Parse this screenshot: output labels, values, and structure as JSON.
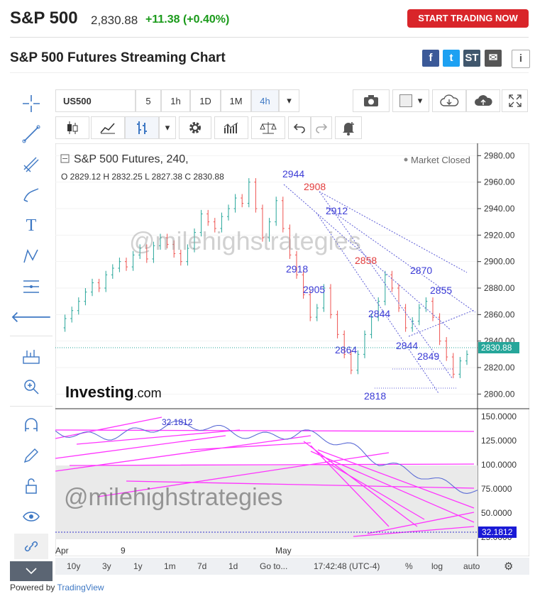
{
  "header": {
    "title": "S&P 500",
    "price": "2,830.88",
    "change": "+11.38 (+0.40%)",
    "trade_button": "START TRADING NOW",
    "subtitle": "S&P 500 Futures Streaming Chart"
  },
  "share": [
    {
      "icon": "facebook-icon",
      "glyph": "f",
      "color": "#3b5998"
    },
    {
      "icon": "twitter-icon",
      "glyph": "t",
      "color": "#1da1f2"
    },
    {
      "icon": "stocktwits-icon",
      "glyph": "ST",
      "color": "#40576d"
    },
    {
      "icon": "email-icon",
      "glyph": "✉",
      "color": "#555555"
    },
    {
      "icon": "info-icon",
      "glyph": "i",
      "color": "#666666"
    }
  ],
  "toolbar": {
    "symbol": "US500",
    "intervals": [
      "5",
      "1h",
      "1D",
      "1M",
      "4h"
    ],
    "active_interval": "4h"
  },
  "chart_legend": {
    "name": "S&P 500 Futures, 240,",
    "ohlc": "O 2829.12  H 2832.25  L 2827.38  C 2830.88",
    "status": "Market Closed",
    "last_price": "2830.88",
    "watermark": "@milehighstrategies",
    "logo": "Investing",
    "logo_suffix": ".com"
  },
  "rsi_panel": {
    "value_label": "32.1812",
    "last_value": "32.1812",
    "watermark": "@milehighstrategies",
    "y_ticks": [
      "150.0000",
      "125.0000",
      "100.0000",
      "75.0000",
      "50.0000",
      "25.0000"
    ]
  },
  "x_ticks": [
    {
      "label": "Apr"
    },
    {
      "label": "9"
    },
    {
      "label": "May"
    }
  ],
  "bottombar": {
    "ranges": [
      "10y",
      "3y",
      "1y",
      "1m",
      "7d",
      "1d",
      "Go to..."
    ],
    "time": "17:42:48 (UTC-4)",
    "options": [
      "%",
      "log",
      "auto"
    ]
  },
  "footer": {
    "text": "Powered by",
    "link": "TradingView"
  },
  "chart_data": {
    "type": "candlestick",
    "title": "S&P 500 Futures, 240,",
    "ylim": [
      2790,
      2985
    ],
    "y_ticks": [
      2800,
      2820,
      2840,
      2860,
      2880,
      2900,
      2920,
      2940,
      2960,
      2980
    ],
    "annotations": [
      {
        "label": "2944",
        "color": "#3b3bd6"
      },
      {
        "label": "2908",
        "color": "#e23b3b"
      },
      {
        "label": "2912",
        "color": "#3b3bd6"
      },
      {
        "label": "2918",
        "color": "#3b3bd6"
      },
      {
        "label": "2905",
        "color": "#3b3bd6"
      },
      {
        "label": "2858",
        "color": "#e23b3b"
      },
      {
        "label": "2870",
        "color": "#3b3bd6"
      },
      {
        "label": "2855",
        "color": "#3b3bd6"
      },
      {
        "label": "2844",
        "color": "#3b3bd6"
      },
      {
        "label": "2844",
        "color": "#3b3bd6"
      },
      {
        "label": "2864",
        "color": "#3b3bd6"
      },
      {
        "label": "2849",
        "color": "#3b3bd6"
      },
      {
        "label": "2818",
        "color": "#3b3bd6"
      }
    ],
    "close_path": [
      2850,
      2857,
      2863,
      2870,
      2877,
      2884,
      2880,
      2890,
      2895,
      2900,
      2896,
      2905,
      2910,
      2902,
      2912,
      2918,
      2913,
      2906,
      2900,
      2910,
      2922,
      2936,
      2930,
      2925,
      2934,
      2940,
      2948,
      2944,
      2960,
      2940,
      2918,
      2930,
      2946,
      2925,
      2905,
      2890,
      2875,
      2858,
      2865,
      2880,
      2860,
      2845,
      2830,
      2818,
      2830,
      2845,
      2858,
      2870,
      2890,
      2880,
      2865,
      2850,
      2855,
      2865,
      2870,
      2858,
      2840,
      2828,
      2815,
      2825,
      2830
    ]
  },
  "colors": {
    "up": "#26a69a",
    "down": "#ef5350",
    "trendline": "#5b5bd6",
    "rsi_lines": "#ff33ff",
    "rsi": "#5b6bd6",
    "accent": "#3e78c4"
  }
}
